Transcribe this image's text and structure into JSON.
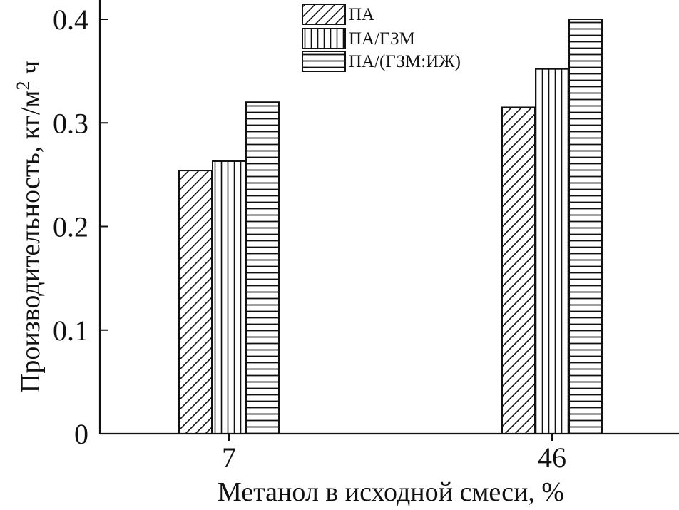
{
  "chart_data": {
    "type": "bar",
    "categories": [
      "7",
      "46"
    ],
    "series": [
      {
        "name": "ПА",
        "values": [
          0.254,
          0.315
        ],
        "pattern": "diagonal"
      },
      {
        "name": "ПА/ГЗМ",
        "values": [
          0.263,
          0.352
        ],
        "pattern": "vertical"
      },
      {
        "name": "ПА/(ГЗМ:ИЖ)",
        "values": [
          0.32,
          0.4
        ],
        "pattern": "horizontal"
      }
    ],
    "xlabel": "Метанол в исходной смеси, %",
    "ylabel": "Производительность, кг/м",
    "ylabel_superscript": "2",
    "ylabel_suffix": " ч",
    "ylim": [
      0,
      0.4
    ],
    "yticks": [
      "0",
      "0.1",
      "0.2",
      "0.3",
      "0.4"
    ],
    "legend_position": "top-center",
    "grid": false,
    "colors": {
      "ink": "#111111",
      "background": "#ffffff"
    }
  }
}
